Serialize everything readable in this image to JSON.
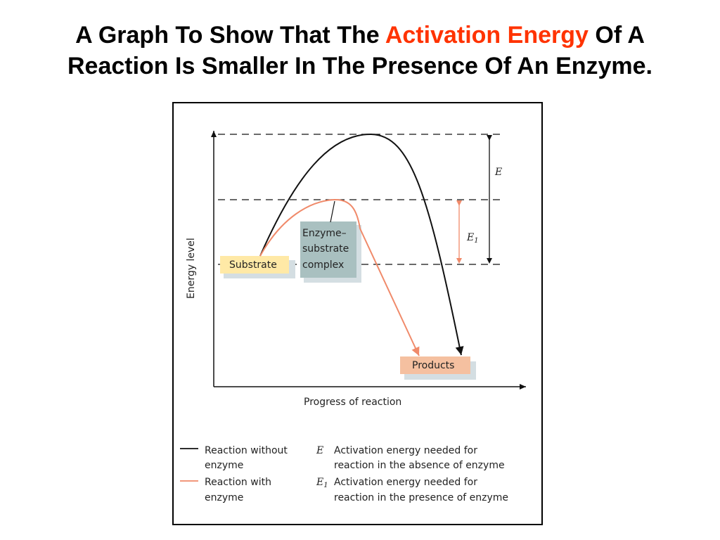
{
  "title": {
    "line1_pre": "A Graph To Show That The ",
    "line1_highlight": "Activation Energy",
    "line1_post": " Of A",
    "line2": "Reaction Is Smaller In The Presence Of An Enzyme."
  },
  "colors": {
    "highlight": "#ff3300",
    "without_enzyme": "#111111",
    "with_enzyme": "#f08a6a",
    "substrate_box": "#ffe9a6",
    "complex_box": "#a9c0c0",
    "products_box": "#f5c0a0",
    "box_shadow": "#d4dee2"
  },
  "diagram": {
    "y_axis_label": "Energy level",
    "x_axis_label": "Progress of reaction",
    "substrate_label": "Substrate",
    "complex_label": [
      "Enzyme–",
      "substrate",
      "complex"
    ],
    "products_label": "Products",
    "e_label": "E",
    "e1_label": "E",
    "e1_subscript": "1"
  },
  "legend": {
    "without_enzyme": [
      "Reaction without",
      "enzyme"
    ],
    "with_enzyme": [
      "Reaction with",
      "enzyme"
    ],
    "e_symbol": "E",
    "e1_symbol": "E",
    "e1_subscript": "1",
    "e_description": [
      "Activation energy needed for",
      "reaction in the absence of enzyme"
    ],
    "e1_description": [
      "Activation energy needed for",
      "reaction in the presence of enzyme"
    ]
  }
}
